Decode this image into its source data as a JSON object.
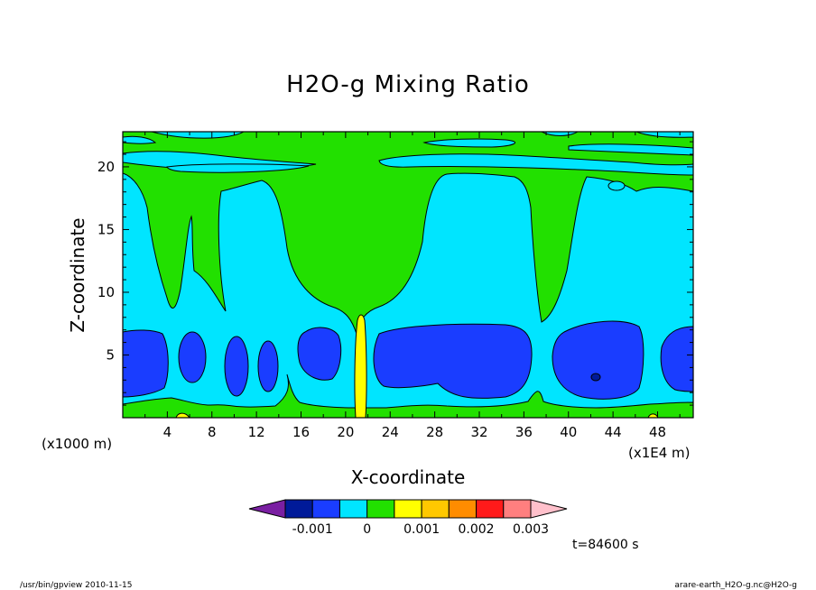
{
  "chart_data": {
    "type": "heatmap",
    "title": "H2O-g Mixing Ratio",
    "xlabel": "X-coordinate",
    "ylabel": "Z-coordinate",
    "x_unit": "(x1E4 m)",
    "y_unit": "(x1000 m)",
    "x_ticks": [
      4,
      8,
      12,
      16,
      20,
      24,
      28,
      32,
      36,
      40,
      44,
      48
    ],
    "y_ticks": [
      5,
      10,
      15,
      20
    ],
    "xlim": [
      0,
      51.2
    ],
    "ylim": [
      0,
      22.8
    ],
    "colorbar": {
      "colors": [
        "#7a1fa2",
        "#001a99",
        "#1a3dff",
        "#00e5ff",
        "#22e000",
        "#ffff00",
        "#ffc800",
        "#ff8c00",
        "#ff1a1a",
        "#ff7f7f",
        "#ffc0cb"
      ],
      "tick_labels": [
        "-0.001",
        "0",
        "0.001",
        "0.002",
        "0.003"
      ],
      "tick_positions": [
        -0.001,
        0,
        0.001,
        0.002,
        0.003
      ]
    },
    "time_label": "t=84600 s",
    "field_levels": {
      "dark_blue": "-0.001",
      "blue": "-0.0005",
      "cyan": "0",
      "green": "0.0005",
      "yellow": "0.001"
    }
  },
  "footer": {
    "left": "/usr/bin/gpview   2010-11-15",
    "right": "arare-earth_H2O-g.nc@H2O-g"
  }
}
